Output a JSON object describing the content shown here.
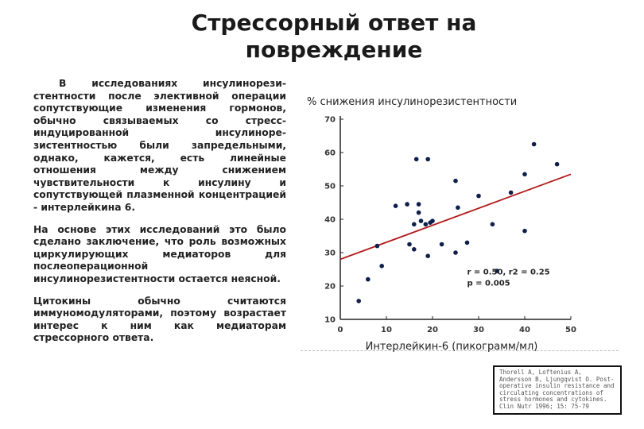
{
  "slide": {
    "title": "Стрессорный ответ на повреждение",
    "paragraphs": [
      "В исследованиях инсулинорези-стентности после элективной операции сопутствующие изменения гормонов, обычно связываемых со стресс-индуцированной инсулиноре-зистентностью были запредельными, однако, кажется, есть линейные отношения между снижением чувствительности к инсулину и сопутствующей плазменной концентрацией - интерлейкина 6.",
      "На основе этих исследований это было сделано заключение, что роль возможных циркулирующих медиаторов для послеоперационной инсулинорезистентности остается неясной.",
      "Цитокины обычно считаются иммуномодуляторами, поэтому возрастает интерес к ним как медиаторам стрессорного ответа."
    ],
    "reference": "Thorell A, Loftenius A, Andersson B, Ljungqvist O. Post-operative insulin resistance and circulating concentrations of stress hormones and cytokines. Clin Nutr 1996; 15: 75-79"
  },
  "chart_data": {
    "type": "scatter",
    "title": "% снижения инсулинорезистентности",
    "xlabel": "Интерлейкин-6 (пикограмм/мл)",
    "ylabel": "",
    "xlim": [
      0,
      50
    ],
    "ylim": [
      10,
      70
    ],
    "xticks": [
      0,
      10,
      20,
      30,
      40,
      50
    ],
    "yticks": [
      10,
      20,
      30,
      40,
      50,
      60,
      70
    ],
    "grid": false,
    "stats": [
      "r = 0.50, r2 = 0.25",
      "p = 0.005"
    ],
    "point_color": "#0d1f4a",
    "line_color": "#b11a1a",
    "points": [
      [
        4,
        15.5
      ],
      [
        6,
        22
      ],
      [
        8,
        32
      ],
      [
        9,
        26
      ],
      [
        12,
        44
      ],
      [
        14.5,
        44.5
      ],
      [
        15,
        32.5
      ],
      [
        16,
        31
      ],
      [
        16,
        38.5
      ],
      [
        16.5,
        58
      ],
      [
        17,
        44.5
      ],
      [
        17,
        42
      ],
      [
        17.5,
        39.5
      ],
      [
        18.5,
        38.5
      ],
      [
        19,
        58
      ],
      [
        19,
        29
      ],
      [
        19.5,
        39
      ],
      [
        20,
        39.5
      ],
      [
        22,
        32.5
      ],
      [
        25,
        30
      ],
      [
        25,
        51.5
      ],
      [
        25.5,
        43.5
      ],
      [
        27.5,
        33
      ],
      [
        30,
        47
      ],
      [
        33,
        38.5
      ],
      [
        34,
        24.5
      ],
      [
        37,
        48
      ],
      [
        40,
        53.5
      ],
      [
        40,
        36.5
      ],
      [
        42,
        62.5
      ],
      [
        47,
        56.5
      ]
    ],
    "trendline": {
      "intercept": 28,
      "slope": 0.51
    }
  }
}
